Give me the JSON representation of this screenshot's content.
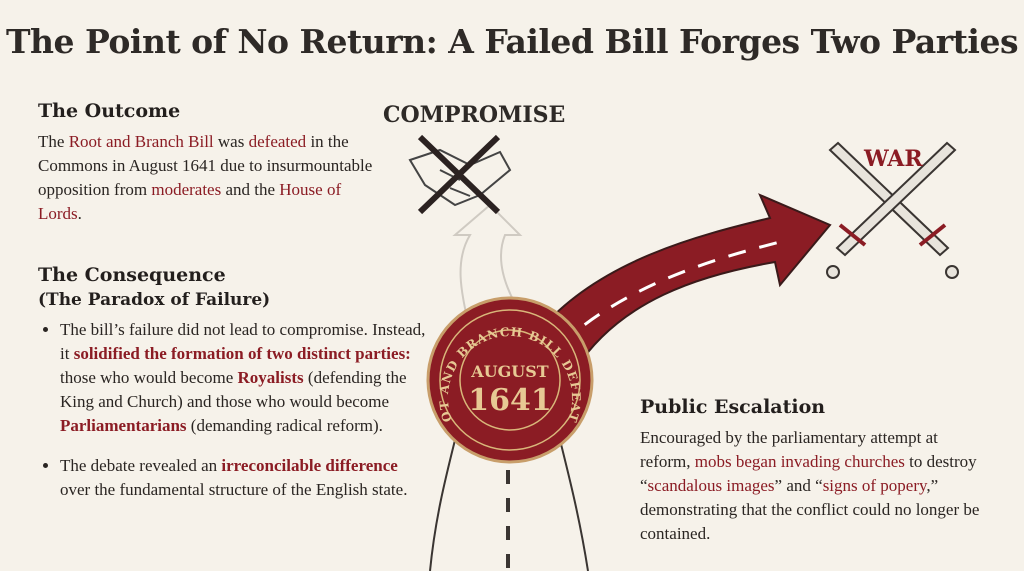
{
  "title": "The Point of No Return: A Failed Bill Forges Two Parties",
  "outcome": {
    "heading": "The Outcome",
    "segments": [
      {
        "text": "The ",
        "style": "plain"
      },
      {
        "text": "Root and Branch Bill",
        "style": "hl"
      },
      {
        "text": " was ",
        "style": "plain"
      },
      {
        "text": "defeated",
        "style": "hl"
      },
      {
        "text": " in the Commons in August 1641 due to insurmountable opposition from ",
        "style": "plain"
      },
      {
        "text": "moderates",
        "style": "hl"
      },
      {
        "text": " and the ",
        "style": "plain"
      },
      {
        "text": "House of Lords",
        "style": "hl"
      },
      {
        "text": ".",
        "style": "plain"
      }
    ]
  },
  "consequence": {
    "heading": "The Consequence",
    "subheading": "(The Paradox of Failure)",
    "bullets": [
      [
        {
          "text": "The bill’s failure did not lead to compromise. Instead, it ",
          "style": "plain"
        },
        {
          "text": "solidified the formation of two distinct parties:",
          "style": "hb"
        },
        {
          "text": " those who would become ",
          "style": "plain"
        },
        {
          "text": "Royalists",
          "style": "hb"
        },
        {
          "text": " (defending the King and Church) and those who would become ",
          "style": "plain"
        },
        {
          "text": "Parliamentarians",
          "style": "hb"
        },
        {
          "text": " (demanding radical reform).",
          "style": "plain"
        }
      ],
      [
        {
          "text": "The debate revealed an ",
          "style": "plain"
        },
        {
          "text": "irreconcilable difference",
          "style": "hb"
        },
        {
          "text": " over the fundamental structure of the English state.",
          "style": "plain"
        }
      ]
    ]
  },
  "diagram": {
    "compromise_label": "COMPROMISE",
    "war_label": "WAR",
    "seal": {
      "ring_text": "ROOT AND BRANCH BILL DEFEATED",
      "month": "AUGUST",
      "year": "1641"
    },
    "icons": [
      "handshake-icon",
      "crossed-out-icon",
      "crossed-swords-icon",
      "road-arrow-icon",
      "wax-seal-icon"
    ]
  },
  "escalation": {
    "heading": "Public Escalation",
    "segments": [
      {
        "text": "Encouraged by the parliamentary attempt at reform, ",
        "style": "plain"
      },
      {
        "text": "mobs began invading churches",
        "style": "hl"
      },
      {
        "text": " to destroy “",
        "style": "plain"
      },
      {
        "text": "scandalous images",
        "style": "hl"
      },
      {
        "text": "” and “",
        "style": "plain"
      },
      {
        "text": "signs of popery",
        "style": "hl"
      },
      {
        "text": ",” demonstrating that the conflict could no longer be contained.",
        "style": "plain"
      }
    ]
  },
  "colors": {
    "accent": "#8b1c24",
    "background": "#f6f2ea",
    "gold": "#d9b77a"
  }
}
